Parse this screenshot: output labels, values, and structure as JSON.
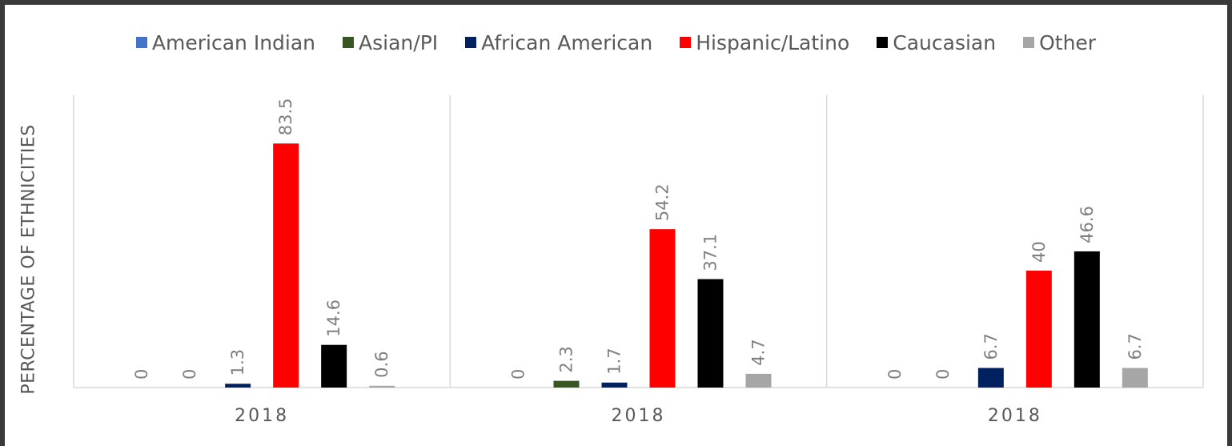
{
  "chart_data": {
    "type": "bar",
    "ylabel": "PERCENTAGE OF ETHNICITIES",
    "legend_position": "top",
    "series": [
      {
        "name": "American Indian",
        "color": "#4472c4"
      },
      {
        "name": "Asian/PI",
        "color": "#375623"
      },
      {
        "name": "African American",
        "color": "#002060"
      },
      {
        "name": "Hispanic/Latino",
        "color": "#ff0000"
      },
      {
        "name": "Caucasian",
        "color": "#000000"
      },
      {
        "name": "Other",
        "color": "#a6a6a6"
      }
    ],
    "panels": [
      {
        "category": "2018",
        "values": [
          0,
          0,
          1.3,
          83.5,
          14.6,
          0.6
        ]
      },
      {
        "category": "2018",
        "values": [
          0,
          2.3,
          1.7,
          54.2,
          37.1,
          4.7
        ]
      },
      {
        "category": "2018",
        "values": [
          0,
          0,
          6.7,
          40,
          46.6,
          6.7
        ]
      }
    ],
    "data_labels": [
      [
        "0",
        "0",
        "1.3",
        "83.5",
        "14.6",
        "0.6"
      ],
      [
        "0",
        "2.3",
        "1.7",
        "54.2",
        "37.1",
        "4.7"
      ],
      [
        "0",
        "0",
        "6.7",
        "40",
        "46.6",
        "6.7"
      ]
    ],
    "ylim": [
      0,
      100
    ],
    "grid": false
  }
}
